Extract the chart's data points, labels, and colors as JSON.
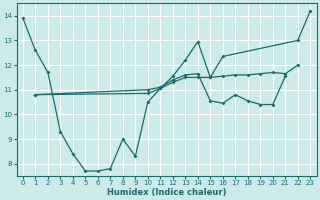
{
  "xlabel": "Humidex (Indice chaleur)",
  "background_color": "#cceaea",
  "grid_color": "#ffffff",
  "line_color": "#1a6b6b",
  "xlim": [
    -0.5,
    23.5
  ],
  "ylim": [
    7.5,
    14.5
  ],
  "xticks": [
    0,
    1,
    2,
    3,
    4,
    5,
    6,
    7,
    8,
    9,
    10,
    11,
    12,
    13,
    14,
    15,
    16,
    17,
    18,
    19,
    20,
    21,
    22,
    23
  ],
  "yticks": [
    8,
    9,
    10,
    11,
    12,
    13,
    14
  ],
  "s1_x": [
    0,
    1,
    2,
    3,
    4,
    5,
    6,
    7,
    8,
    9,
    10,
    11,
    12,
    13,
    14,
    15,
    16,
    22,
    23
  ],
  "s1_y": [
    13.9,
    12.6,
    11.7,
    9.3,
    8.4,
    7.7,
    7.7,
    7.8,
    9.0,
    8.3,
    10.5,
    11.05,
    11.55,
    12.2,
    12.95,
    11.5,
    12.35,
    13.0,
    14.2
  ],
  "s2_x": [
    1,
    10,
    11,
    12,
    13,
    14,
    15,
    16,
    17,
    18,
    19,
    20,
    21,
    22
  ],
  "s2_y": [
    10.8,
    10.85,
    11.05,
    11.3,
    11.5,
    11.5,
    11.5,
    11.55,
    11.6,
    11.6,
    11.65,
    11.7,
    11.65,
    12.0
  ],
  "s3_x": [
    1,
    10,
    11,
    12,
    13,
    14,
    15,
    16,
    17,
    18,
    19,
    20,
    21
  ],
  "s3_y": [
    10.8,
    11.0,
    11.1,
    11.4,
    11.6,
    11.65,
    10.55,
    10.45,
    10.8,
    10.55,
    10.4,
    10.4,
    11.55
  ]
}
